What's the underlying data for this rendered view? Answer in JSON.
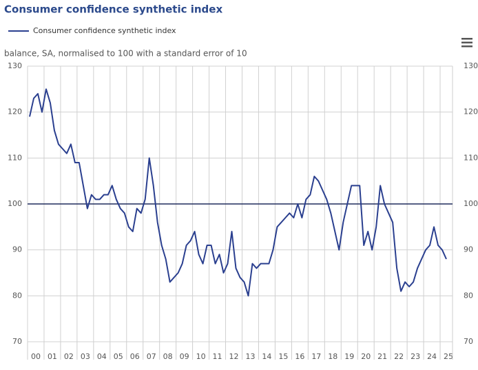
{
  "chart_data": {
    "type": "line",
    "title": "Consumer confidence synthetic index",
    "subtitle": "balance, SA, normalised to 100 with a standard error of 10",
    "categories": [
      "00",
      null,
      null,
      null,
      "01",
      null,
      null,
      null,
      "02",
      null,
      null,
      null,
      "03",
      null,
      null,
      null,
      "04",
      null,
      null,
      null,
      "05",
      null,
      null,
      null,
      "06",
      null,
      null,
      null,
      "07",
      null,
      null,
      null,
      "08",
      null,
      null,
      null,
      "09",
      null,
      null,
      null,
      "10",
      null,
      null,
      null,
      "11",
      null,
      null,
      null,
      "12",
      null,
      null,
      null,
      "13",
      null,
      null,
      null,
      "14",
      null,
      null,
      null,
      "15",
      null,
      null,
      null,
      "16",
      null,
      null,
      null,
      "17",
      null,
      null,
      null,
      "18",
      null,
      null,
      null,
      "19",
      null,
      null,
      null,
      "20",
      null,
      null,
      null,
      "21",
      null,
      null,
      null,
      "22",
      null,
      null,
      null,
      "23",
      null,
      null,
      null,
      "24",
      null,
      null,
      null,
      "25",
      null
    ],
    "series": [
      {
        "name": "Consumer confidence synthetic index",
        "color": "#2a3f8f",
        "values": [
          119,
          123,
          124,
          120,
          125,
          122,
          116,
          113,
          112,
          111,
          113,
          109,
          109,
          104,
          99,
          102,
          101,
          101,
          102,
          102,
          104,
          101,
          99,
          98,
          95,
          94,
          99,
          98,
          101,
          110,
          104,
          96,
          91,
          88,
          83,
          84,
          85,
          87,
          91,
          92,
          94,
          89,
          87,
          91,
          91,
          87,
          89,
          85,
          87,
          94,
          86,
          84,
          83,
          80,
          87,
          86,
          87,
          87,
          87,
          90,
          95,
          96,
          97,
          98,
          97,
          100,
          97,
          101,
          102,
          106,
          105,
          103,
          101,
          98,
          94,
          90,
          96,
          100,
          104,
          104,
          104,
          91,
          94,
          90,
          95,
          104,
          100,
          98,
          96,
          86,
          81,
          83,
          82,
          83,
          86,
          88,
          90,
          91,
          95,
          91,
          90,
          88
        ]
      }
    ],
    "ylim": [
      70,
      130
    ],
    "yticks": [
      70,
      80,
      90,
      100,
      110,
      120,
      130
    ],
    "reference_line": 100,
    "grid": true
  }
}
